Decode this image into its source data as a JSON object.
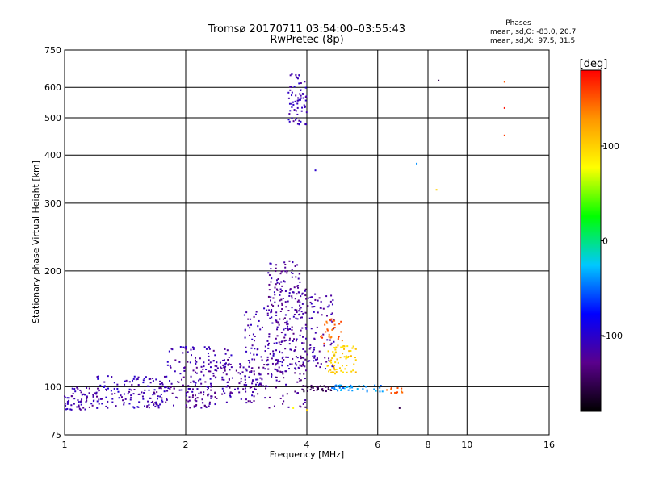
{
  "chart_data": {
    "type": "scatter",
    "title": "Tromsø 20170711 03:54:00–03:55:43",
    "subtitle": "RwPretec (8p)",
    "xlabel": "Frequency [MHz]",
    "ylabel": "Stationary phase Virtual Height [km]",
    "x_scale": "log",
    "y_scale": "log",
    "xlim": [
      1,
      16
    ],
    "ylim": [
      75,
      750
    ],
    "x_ticks": [
      1,
      2,
      4,
      6,
      8,
      10,
      16
    ],
    "y_ticks": [
      75,
      100,
      200,
      300,
      400,
      500,
      600,
      750
    ],
    "grid": true,
    "stats": {
      "header": "Phases",
      "line_o": "mean, sd,O: -83.0, 20.7",
      "line_x": "mean, sd,X:  97.5, 31.5"
    },
    "colorbar": {
      "label": "[deg]",
      "range": [
        -180,
        180
      ],
      "ticks": [
        100,
        0,
        -100
      ],
      "colors": [
        "#000000",
        "#5a008c",
        "#0000ff",
        "#00c8ff",
        "#00ff00",
        "#ffff00",
        "#ff9600",
        "#ff0000"
      ]
    },
    "clusters": [
      {
        "f": [
          1.0,
          1.22
        ],
        "h": [
          87,
          100
        ],
        "phase": -115,
        "n": 70
      },
      {
        "f": [
          1.2,
          1.8
        ],
        "h": [
          88,
          107
        ],
        "phase": -110,
        "n": 120
      },
      {
        "f": [
          1.6,
          1.95
        ],
        "h": [
          88,
          100
        ],
        "phase": -120,
        "n": 30
      },
      {
        "f": [
          1.8,
          2.6
        ],
        "h": [
          98,
          128
        ],
        "phase": -115,
        "n": 120
      },
      {
        "f": [
          2.0,
          2.3
        ],
        "h": [
          88,
          97
        ],
        "phase": -120,
        "n": 40
      },
      {
        "f": [
          2.3,
          3.0
        ],
        "h": [
          90,
          118
        ],
        "phase": -120,
        "n": 90
      },
      {
        "f": [
          2.8,
          3.6
        ],
        "h": [
          100,
          160
        ],
        "phase": -115,
        "n": 130
      },
      {
        "f": [
          3.2,
          3.85
        ],
        "h": [
          150,
          212
        ],
        "phase": -120,
        "n": 90
      },
      {
        "f": [
          3.3,
          4.0
        ],
        "h": [
          110,
          180
        ],
        "phase": -120,
        "n": 110
      },
      {
        "f": [
          3.0,
          4.0
        ],
        "h": [
          88,
          120
        ],
        "phase": -130,
        "n": 60
      },
      {
        "f": [
          3.6,
          4.0
        ],
        "h": [
          480,
          650
        ],
        "phase": -110,
        "n": 70
      },
      {
        "f": [
          4.0,
          4.7
        ],
        "h": [
          110,
          175
        ],
        "phase": -115,
        "n": 80
      },
      {
        "f": [
          4.3,
          4.9
        ],
        "h": [
          128,
          150
        ],
        "phase": 150,
        "n": 30
      },
      {
        "f": [
          4.5,
          5.3
        ],
        "h": [
          108,
          128
        ],
        "phase": 100,
        "n": 70
      },
      {
        "f": [
          3.9,
          4.6
        ],
        "h": [
          97,
          101
        ],
        "phase": -150,
        "n": 35
      },
      {
        "f": [
          4.6,
          6.2
        ],
        "h": [
          97,
          101
        ],
        "phase": -40,
        "n": 40
      },
      {
        "f": [
          6.2,
          7.0
        ],
        "h": [
          96,
          100
        ],
        "phase": 150,
        "n": 12
      }
    ],
    "isolated_points": [
      {
        "f": 4.2,
        "h": 365,
        "phase": -100
      },
      {
        "f": 7.5,
        "h": 380,
        "phase": -40
      },
      {
        "f": 8.4,
        "h": 325,
        "phase": 100
      },
      {
        "f": 8.5,
        "h": 625,
        "phase": -150
      },
      {
        "f": 12.4,
        "h": 620,
        "phase": 150
      },
      {
        "f": 12.4,
        "h": 530,
        "phase": 175
      },
      {
        "f": 12.4,
        "h": 450,
        "phase": 160
      },
      {
        "f": 6.8,
        "h": 88,
        "phase": -150
      },
      {
        "f": 4.0,
        "h": 87,
        "phase": 100
      },
      {
        "f": 3.7,
        "h": 88,
        "phase": 80
      }
    ]
  }
}
